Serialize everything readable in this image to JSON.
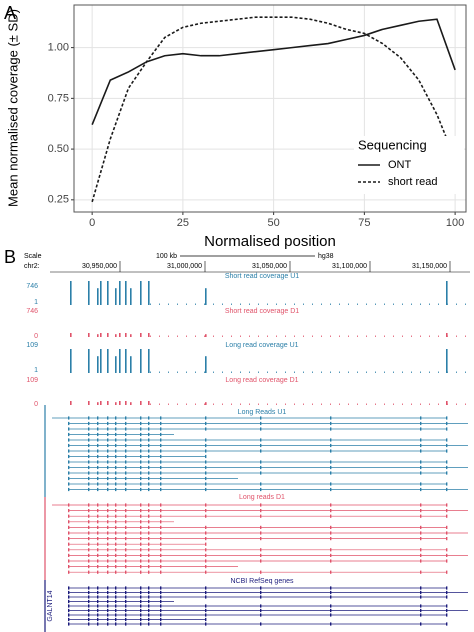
{
  "chart_data": {
    "type": "line",
    "panel_label": "A",
    "x_label": "Normalised position",
    "y_label": "Mean normalised coverage (± SD)",
    "x": [
      0,
      5,
      10,
      15,
      20,
      25,
      30,
      35,
      40,
      45,
      50,
      55,
      60,
      65,
      70,
      75,
      80,
      85,
      90,
      95,
      100
    ],
    "series": [
      {
        "name": "ONT",
        "color": "#1a1a1a",
        "linestyle": "solid",
        "values": [
          0.62,
          0.84,
          0.88,
          0.93,
          0.96,
          0.97,
          0.96,
          0.96,
          0.97,
          0.98,
          0.99,
          1.0,
          1.01,
          1.02,
          1.04,
          1.06,
          1.09,
          1.11,
          1.13,
          1.14,
          0.89
        ]
      },
      {
        "name": "short read",
        "color": "#1a1a1a",
        "linestyle": "dashed",
        "values": [
          0.24,
          0.55,
          0.8,
          0.93,
          1.05,
          1.1,
          1.12,
          1.13,
          1.14,
          1.15,
          1.15,
          1.15,
          1.14,
          1.12,
          1.09,
          1.07,
          1.02,
          0.95,
          0.84,
          0.67,
          0.45
        ]
      }
    ],
    "legend_title": "Sequencing",
    "legend_position": "bottom-right",
    "xlim": [
      -5,
      103
    ],
    "xticks": [
      0,
      25,
      50,
      75,
      100
    ],
    "ylim": [
      0.19,
      1.21
    ],
    "yticks": [
      0.25,
      {
        "value": 0.5,
        "label": "0.50"
      },
      0.75,
      {
        "value": 1.0,
        "label": "1.00"
      }
    ],
    "grid": true
  },
  "browser": {
    "panel_label": "B",
    "scale_label": "Scale",
    "chrom": "chr2:",
    "scale_bar": "100 kb",
    "assembly": "hg38",
    "ruler": [
      "30,950,000",
      "31,000,000",
      "31,050,000",
      "31,100,000",
      "31,150,000"
    ],
    "tracks": [
      {
        "title": "Short read coverage U1",
        "max": "746",
        "min": "1"
      },
      {
        "title": "Short read coverage D1",
        "max": "746",
        "min": "0"
      },
      {
        "title": "Long read coverage U1",
        "max": "109",
        "min": "1"
      },
      {
        "title": "Long read coverage D1",
        "max": "109",
        "min": "0"
      },
      {
        "title": "Long Reads U1"
      },
      {
        "title": "Long reads D1"
      },
      {
        "title": "NCBI RefSeq genes",
        "gene": "GALNT14"
      }
    ]
  }
}
